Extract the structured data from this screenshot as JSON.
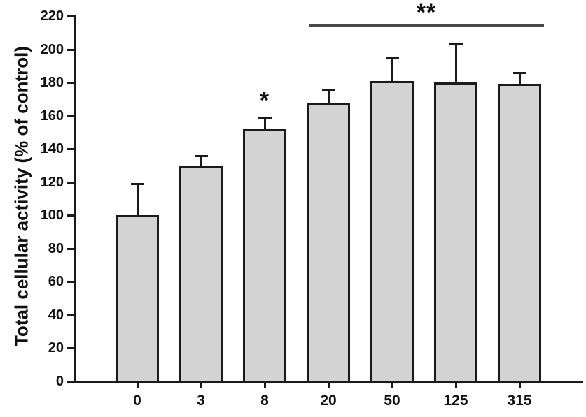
{
  "figure": {
    "background": "#ffffff"
  },
  "chart_data": {
    "type": "bar",
    "title": "",
    "xlabel": "",
    "ylabel": "Total cellular activity (% of control)",
    "categories": [
      "0",
      "3",
      "8",
      "20",
      "50",
      "125",
      "315"
    ],
    "values": [
      100,
      130,
      152,
      168,
      181,
      180,
      179
    ],
    "errors_plus": [
      19,
      6,
      7,
      8,
      14,
      23,
      7
    ],
    "ylim": [
      0,
      220
    ],
    "yticks": [
      0,
      20,
      40,
      60,
      80,
      100,
      120,
      140,
      160,
      180,
      200,
      220
    ],
    "grid": false,
    "legend": null,
    "bar_fill_color": "#d3d3d3",
    "bar_border_color": "#1a1a1a",
    "axis_color": "#1a1a1a",
    "bracket_line_color": "#4a4a4a",
    "annotations": [
      {
        "type": "star",
        "label": "*",
        "category": "8"
      },
      {
        "type": "bracket",
        "label": "**",
        "from_category": "20",
        "to_category": "315"
      }
    ]
  }
}
